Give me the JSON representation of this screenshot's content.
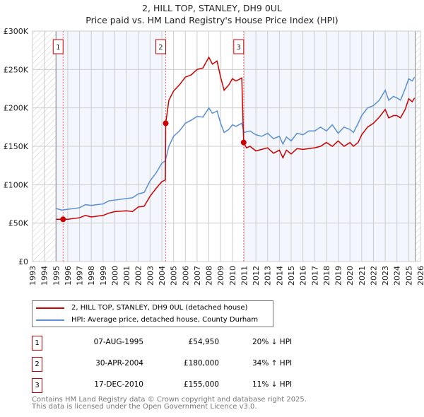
{
  "title": "2, HILL TOP, STANLEY, DH9 0UL",
  "subtitle": "Price paid vs. HM Land Registry's House Price Index (HPI)",
  "legend": [
    {
      "label": "2, HILL TOP, STANLEY, DH9 0UL (detached house)",
      "color": "#cc0000"
    },
    {
      "label": "HPI: Average price, detached house, County Durham",
      "color": "#5b8fd4"
    }
  ],
  "sales": [
    {
      "num": "1",
      "date": "07-AUG-1995",
      "price": "£54,950",
      "hpi": "20% ↓ HPI"
    },
    {
      "num": "2",
      "date": "30-APR-2004",
      "price": "£180,000",
      "hpi": "34% ↑ HPI"
    },
    {
      "num": "3",
      "date": "17-DEC-2010",
      "price": "£155,000",
      "hpi": "11% ↓ HPI"
    }
  ],
  "footer": [
    "Contains HM Land Registry data © Crown copyright and database right 2025.",
    "This data is licensed under the Open Government Licence v3.0."
  ],
  "chart_data": {
    "type": "line",
    "title": "2, HILL TOP, STANLEY, DH9 0UL",
    "subtitle": "Price paid vs. HM Land Registry's House Price Index (HPI)",
    "xlim": [
      1993,
      2026
    ],
    "ylim": [
      0,
      300000
    ],
    "yticks": [
      {
        "v": 0,
        "l": "£0"
      },
      {
        "v": 50000,
        "l": "£50K"
      },
      {
        "v": 100000,
        "l": "£100K"
      },
      {
        "v": 150000,
        "l": "£150K"
      },
      {
        "v": 200000,
        "l": "£200K"
      },
      {
        "v": 250000,
        "l": "£250K"
      },
      {
        "v": 300000,
        "l": "£300K"
      }
    ],
    "xticks": [
      "1993",
      "1994",
      "1995",
      "1996",
      "1997",
      "1998",
      "1999",
      "2000",
      "2001",
      "2002",
      "2003",
      "2004",
      "2005",
      "2006",
      "2007",
      "2008",
      "2009",
      "2010",
      "2011",
      "2012",
      "2013",
      "2014",
      "2015",
      "2016",
      "2017",
      "2018",
      "2019",
      "2020",
      "2021",
      "2022",
      "2023",
      "2024",
      "2025",
      "2026"
    ],
    "data_start": 1995,
    "data_end": 2025.55,
    "sale_points": [
      {
        "label": "1",
        "x": 1995.6,
        "y": 54950
      },
      {
        "label": "2",
        "x": 2004.33,
        "y": 180000
      },
      {
        "label": "3",
        "x": 2010.96,
        "y": 155000
      }
    ],
    "series": [
      {
        "name": "HPI: Average price, detached house, County Durham",
        "color": "#5b8fd4",
        "points": [
          [
            1995,
            69
          ],
          [
            1995.5,
            67
          ],
          [
            1996,
            68
          ],
          [
            1997,
            70
          ],
          [
            1997.5,
            74
          ],
          [
            1998,
            73
          ],
          [
            1999,
            75
          ],
          [
            1999.5,
            79
          ],
          [
            2000,
            80
          ],
          [
            2001,
            82
          ],
          [
            2001.5,
            83
          ],
          [
            2002,
            88
          ],
          [
            2002.5,
            90
          ],
          [
            2003,
            105
          ],
          [
            2003.5,
            115
          ],
          [
            2004,
            128
          ],
          [
            2004.3,
            131
          ],
          [
            2004.6,
            150
          ],
          [
            2005,
            163
          ],
          [
            2005.5,
            170
          ],
          [
            2006,
            180
          ],
          [
            2006.5,
            184
          ],
          [
            2007,
            189
          ],
          [
            2007.5,
            188
          ],
          [
            2008,
            200
          ],
          [
            2008.3,
            193
          ],
          [
            2008.7,
            196
          ],
          [
            2009,
            180
          ],
          [
            2009.3,
            168
          ],
          [
            2009.7,
            172
          ],
          [
            2010,
            178
          ],
          [
            2010.3,
            176
          ],
          [
            2010.8,
            180
          ],
          [
            2011,
            168
          ],
          [
            2011.5,
            170
          ],
          [
            2012,
            165
          ],
          [
            2012.5,
            163
          ],
          [
            2013,
            167
          ],
          [
            2013.5,
            160
          ],
          [
            2014,
            163
          ],
          [
            2014.3,
            153
          ],
          [
            2014.6,
            162
          ],
          [
            2015,
            157
          ],
          [
            2015.5,
            167
          ],
          [
            2016,
            165
          ],
          [
            2016.5,
            170
          ],
          [
            2017,
            170
          ],
          [
            2017.5,
            175
          ],
          [
            2018,
            170
          ],
          [
            2018.5,
            178
          ],
          [
            2019,
            167
          ],
          [
            2019.5,
            175
          ],
          [
            2020,
            172
          ],
          [
            2020.3,
            168
          ],
          [
            2020.7,
            180
          ],
          [
            2021,
            190
          ],
          [
            2021.5,
            200
          ],
          [
            2022,
            203
          ],
          [
            2022.5,
            210
          ],
          [
            2023,
            223
          ],
          [
            2023.3,
            210
          ],
          [
            2023.7,
            215
          ],
          [
            2024,
            213
          ],
          [
            2024.3,
            210
          ],
          [
            2024.7,
            225
          ],
          [
            2025,
            238
          ],
          [
            2025.3,
            235
          ],
          [
            2025.5,
            240
          ]
        ]
      },
      {
        "name": "2, HILL TOP, STANLEY, DH9 0UL (detached house)",
        "color": "#cc0000",
        "points": [
          [
            1995,
            55
          ],
          [
            1995.6,
            55
          ],
          [
            1996,
            55
          ],
          [
            1997,
            57
          ],
          [
            1997.5,
            60
          ],
          [
            1998,
            58
          ],
          [
            1999,
            60
          ],
          [
            1999.5,
            63
          ],
          [
            2000,
            65
          ],
          [
            2001,
            66
          ],
          [
            2001.5,
            65
          ],
          [
            2002,
            71
          ],
          [
            2002.5,
            72
          ],
          [
            2003,
            85
          ],
          [
            2003.5,
            95
          ],
          [
            2004,
            104
          ],
          [
            2004.3,
            106
          ],
          [
            2004.33,
            180
          ],
          [
            2004.6,
            210
          ],
          [
            2005,
            222
          ],
          [
            2005.5,
            230
          ],
          [
            2006,
            240
          ],
          [
            2006.5,
            243
          ],
          [
            2007,
            250
          ],
          [
            2007.5,
            252
          ],
          [
            2008,
            266
          ],
          [
            2008.3,
            257
          ],
          [
            2008.7,
            261
          ],
          [
            2009,
            240
          ],
          [
            2009.3,
            223
          ],
          [
            2009.7,
            230
          ],
          [
            2010,
            238
          ],
          [
            2010.3,
            235
          ],
          [
            2010.8,
            239
          ],
          [
            2010.96,
            155
          ],
          [
            2011.2,
            148
          ],
          [
            2011.5,
            150
          ],
          [
            2012,
            144
          ],
          [
            2012.5,
            146
          ],
          [
            2013,
            148
          ],
          [
            2013.5,
            141
          ],
          [
            2014,
            145
          ],
          [
            2014.3,
            135
          ],
          [
            2014.6,
            145
          ],
          [
            2015,
            140
          ],
          [
            2015.5,
            147
          ],
          [
            2016,
            146
          ],
          [
            2016.5,
            147
          ],
          [
            2017,
            148
          ],
          [
            2017.5,
            150
          ],
          [
            2018,
            155
          ],
          [
            2018.5,
            150
          ],
          [
            2019,
            157
          ],
          [
            2019.5,
            150
          ],
          [
            2020,
            155
          ],
          [
            2020.3,
            150
          ],
          [
            2020.7,
            155
          ],
          [
            2021,
            165
          ],
          [
            2021.5,
            175
          ],
          [
            2022,
            180
          ],
          [
            2022.5,
            188
          ],
          [
            2023,
            198
          ],
          [
            2023.3,
            187
          ],
          [
            2023.7,
            190
          ],
          [
            2024,
            190
          ],
          [
            2024.3,
            187
          ],
          [
            2024.7,
            198
          ],
          [
            2025,
            212
          ],
          [
            2025.3,
            208
          ],
          [
            2025.5,
            213
          ]
        ]
      }
    ]
  }
}
